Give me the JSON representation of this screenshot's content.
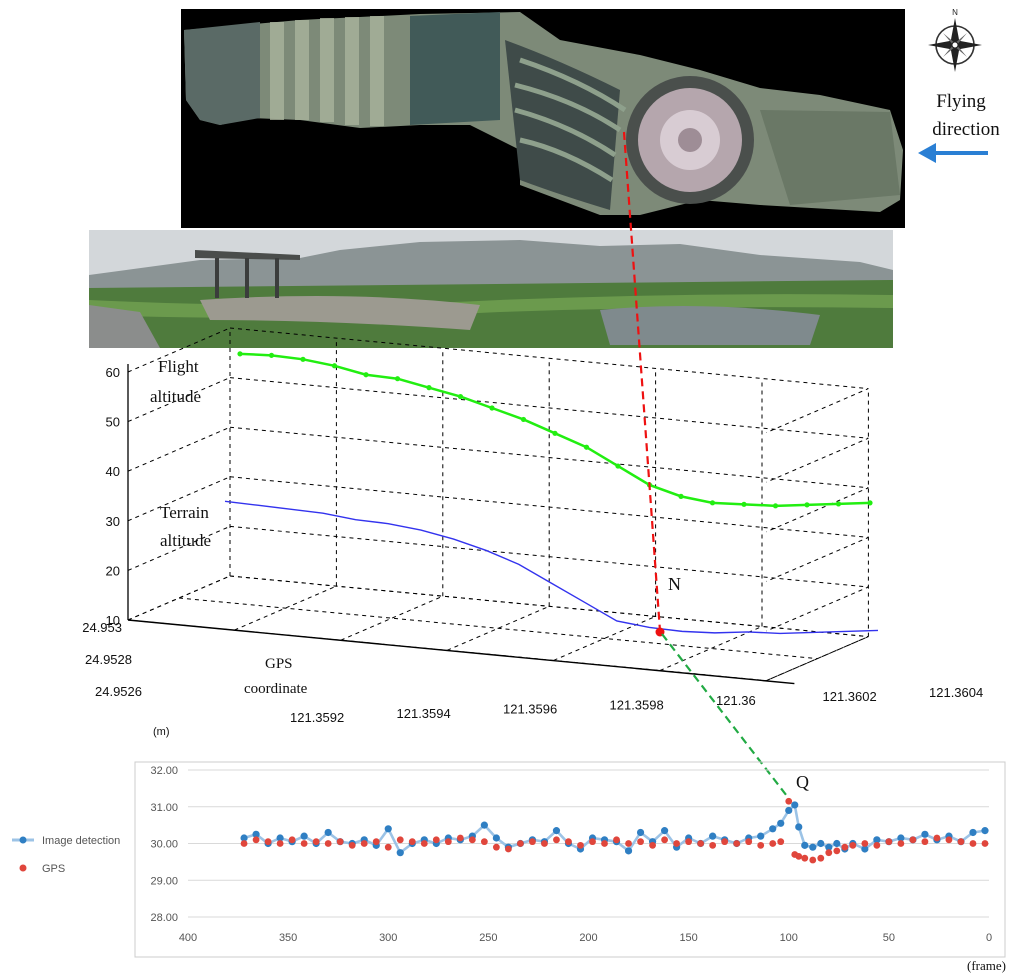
{
  "colors": {
    "flight": "#22ee11",
    "terrain": "#3333ee",
    "image_detection": "#2f7fc3",
    "gps": "#e0463c",
    "marker": "#ee1111",
    "link_red": "#ee1111",
    "link_green": "#22aa44",
    "arrow": "#2a7fd4"
  },
  "header": {
    "flying_label_1": "Flying",
    "flying_label_2": "direction",
    "compass_letter": "N",
    "arrow_direction": "left"
  },
  "chart_data": [
    {
      "type": "line",
      "projection": "3d",
      "zlim": [
        10,
        60
      ],
      "z_ticks": [
        "10",
        "20",
        "30",
        "40",
        "50",
        "60"
      ],
      "lat_ticks": [
        "24.953",
        "24.9528",
        "24.9526"
      ],
      "lon_ticks": [
        "121.3592",
        "121.3594",
        "121.3596",
        "121.3598",
        "121.36",
        "121.3602",
        "121.3604"
      ],
      "unit_label": "(m)",
      "axis_label_1": "GPS",
      "axis_label_2": "coordinate",
      "flight_label_1": "Flight",
      "flight_label_2": "altitude",
      "terrain_label_1": "Terrain",
      "terrain_label_2": "altitude",
      "point_label": "N",
      "series": [
        {
          "values": [
            61,
            61,
            60.5,
            59.5,
            58,
            57.5,
            56,
            54.5,
            52.5,
            50.5,
            48,
            45.5,
            42,
            38.5,
            36.5,
            35.5,
            35.5,
            35.5,
            36,
            36.5,
            37
          ]
        },
        {
          "values": [
            31.5,
            31,
            30.5,
            30,
            29,
            28.5,
            27.5,
            26,
            24,
            21.5,
            18,
            14.5,
            11,
            10,
            9.5,
            9.5,
            10,
            10,
            10.5,
            11,
            11.5
          ]
        }
      ]
    },
    {
      "type": "line",
      "xlim": [
        400,
        0
      ],
      "ylim": [
        28,
        32
      ],
      "x_ticks": [
        "400",
        "350",
        "300",
        "250",
        "200",
        "150",
        "100",
        "50",
        "0"
      ],
      "y_ticks": [
        "32.00",
        "31.00",
        "30.00",
        "29.00",
        "28.00"
      ],
      "xlabel": "(frame)",
      "point_label": "Q",
      "legend_position": "left",
      "series": [
        {
          "name": "Image detection",
          "x": [
            372,
            366,
            360,
            354,
            348,
            342,
            336,
            330,
            324,
            318,
            312,
            306,
            300,
            294,
            288,
            282,
            276,
            270,
            264,
            258,
            252,
            246,
            240,
            234,
            228,
            222,
            216,
            210,
            204,
            198,
            192,
            186,
            180,
            174,
            168,
            162,
            156,
            150,
            144,
            138,
            132,
            126,
            120,
            114,
            108,
            104,
            100,
            97,
            95,
            92,
            88,
            84,
            80,
            76,
            72,
            68,
            62,
            56,
            50,
            44,
            38,
            32,
            26,
            20,
            14,
            8,
            2
          ],
          "y": [
            30.15,
            30.25,
            30.0,
            30.15,
            30.05,
            30.2,
            30.0,
            30.3,
            30.05,
            30.0,
            30.1,
            29.95,
            30.4,
            29.75,
            30.0,
            30.1,
            30.0,
            30.15,
            30.1,
            30.2,
            30.5,
            30.15,
            29.9,
            30.0,
            30.1,
            30.05,
            30.35,
            30.0,
            29.85,
            30.15,
            30.1,
            30.05,
            29.8,
            30.3,
            30.05,
            30.35,
            29.9,
            30.15,
            30.0,
            30.2,
            30.1,
            30.0,
            30.15,
            30.2,
            30.4,
            30.55,
            30.9,
            31.05,
            30.45,
            29.95,
            29.9,
            30.0,
            29.9,
            30.0,
            29.85,
            30.0,
            29.85,
            30.1,
            30.05,
            30.15,
            30.1,
            30.25,
            30.1,
            30.2,
            30.05,
            30.3,
            30.35
          ]
        },
        {
          "name": "GPS",
          "x": [
            372,
            366,
            360,
            354,
            348,
            342,
            336,
            330,
            324,
            318,
            312,
            306,
            300,
            294,
            288,
            282,
            276,
            270,
            264,
            258,
            252,
            246,
            240,
            234,
            228,
            222,
            216,
            210,
            204,
            198,
            192,
            186,
            180,
            174,
            168,
            162,
            156,
            150,
            144,
            138,
            132,
            126,
            120,
            114,
            108,
            104,
            100,
            97,
            95,
            92,
            88,
            84,
            80,
            76,
            72,
            68,
            62,
            56,
            50,
            44,
            38,
            32,
            26,
            20,
            14,
            8,
            2
          ],
          "y": [
            30.0,
            30.1,
            30.05,
            30.0,
            30.1,
            30.0,
            30.05,
            30.0,
            30.05,
            29.95,
            30.0,
            30.05,
            29.9,
            30.1,
            30.05,
            30.0,
            30.1,
            30.05,
            30.15,
            30.1,
            30.05,
            29.9,
            29.85,
            30.0,
            30.05,
            30.0,
            30.1,
            30.05,
            29.95,
            30.05,
            30.0,
            30.1,
            30.0,
            30.05,
            29.95,
            30.1,
            30.0,
            30.05,
            30.0,
            29.95,
            30.05,
            30.0,
            30.05,
            29.95,
            30.0,
            30.05,
            31.15,
            29.7,
            29.65,
            29.6,
            29.55,
            29.6,
            29.75,
            29.8,
            29.9,
            29.95,
            30.0,
            29.95,
            30.05,
            30.0,
            30.1,
            30.05,
            30.15,
            30.1,
            30.05,
            30.0,
            30.0
          ]
        }
      ]
    }
  ]
}
